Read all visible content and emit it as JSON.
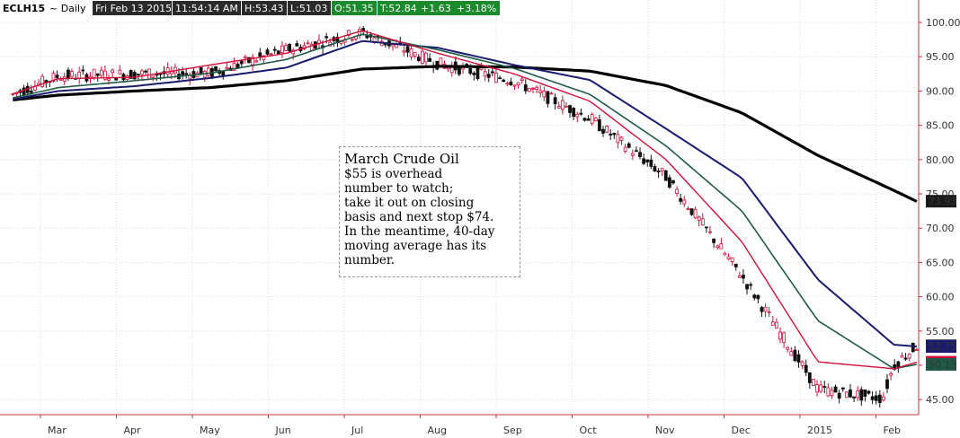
{
  "header": {
    "symbol": "ECLH15",
    "period": "~ Daily",
    "date": "Fri Feb 13 2015",
    "time": "11:54:14 AM",
    "high": "H:53.43",
    "low": "L:51.03",
    "open": "O:51.35",
    "last": "T:52.84",
    "change": "+1.63",
    "change_pct": "+3.18%"
  },
  "annotation": {
    "title": "March Crude Oil",
    "lines": [
      "$55 is overhead",
      "number to watch;",
      "take it out on closing",
      "basis and next stop $74.",
      "In the meantime, 40-day",
      "moving average has its",
      "number."
    ]
  },
  "colors": {
    "up_candle": "#d0103a",
    "down_candle": "#111111",
    "ma_fast": "#d0103a",
    "ma_mid": "#1e5a45",
    "ma_slow": "#1a1a6e",
    "ma_long": "#000000",
    "header_dark": "#2a2a2a",
    "header_green": "#1b8a2a"
  },
  "chart_data": {
    "type": "line",
    "ylim": [
      43,
      102
    ],
    "y_ticks": [
      "100.00",
      "95.00",
      "90.00",
      "85.00",
      "80.00",
      "75.00",
      "70.00",
      "65.00",
      "60.00",
      "55.00",
      "50.00",
      "45.00"
    ],
    "y_tick_values": [
      100,
      95,
      90,
      85,
      80,
      75,
      70,
      65,
      60,
      55,
      50,
      45
    ],
    "x_months": [
      "Mar",
      "Apr",
      "May",
      "Jun",
      "Jul",
      "Aug",
      "Sep",
      "Oct",
      "Nov",
      "Dec",
      "2015",
      "Feb"
    ],
    "x_month_index": [
      0,
      1,
      2,
      3,
      4,
      5,
      6,
      7,
      8,
      9,
      10,
      11
    ],
    "series": [
      {
        "key": "ma_long",
        "points": [
          [
            -0.6,
            88.7
          ],
          [
            0,
            89.4
          ],
          [
            1,
            90.0
          ],
          [
            2,
            90.5
          ],
          [
            3,
            91.5
          ],
          [
            4,
            93.2
          ],
          [
            5,
            93.6
          ],
          [
            6,
            93.5
          ],
          [
            7,
            92.9
          ],
          [
            8,
            90.8
          ],
          [
            9,
            86.8
          ],
          [
            10,
            80.6
          ],
          [
            11,
            75.5
          ],
          [
            11.3,
            73.9
          ]
        ]
      },
      {
        "key": "ma_slow",
        "points": [
          [
            -0.6,
            88.8
          ],
          [
            0,
            90.0
          ],
          [
            1,
            90.7
          ],
          [
            2,
            91.9
          ],
          [
            3,
            93.4
          ],
          [
            4,
            97.3
          ],
          [
            5,
            96.3
          ],
          [
            6,
            93.8
          ],
          [
            7,
            91.6
          ],
          [
            8,
            84.5
          ],
          [
            9,
            77.3
          ],
          [
            10,
            62.5
          ],
          [
            11,
            53.0
          ],
          [
            11.3,
            52.75
          ]
        ]
      },
      {
        "key": "ma_mid",
        "points": [
          [
            -0.6,
            89.0
          ],
          [
            0,
            90.5
          ],
          [
            1,
            91.5
          ],
          [
            2,
            92.6
          ],
          [
            3,
            94.6
          ],
          [
            4,
            98.3
          ],
          [
            5,
            96.0
          ],
          [
            6,
            93.3
          ],
          [
            7,
            89.5
          ],
          [
            8,
            82.0
          ],
          [
            9,
            72.5
          ],
          [
            10,
            56.5
          ],
          [
            11,
            49.5
          ],
          [
            11.3,
            50.13
          ]
        ]
      },
      {
        "key": "ma_fast",
        "points": [
          [
            -0.6,
            89.6
          ],
          [
            0,
            91.8
          ],
          [
            1,
            92.0
          ],
          [
            2,
            93.8
          ],
          [
            3,
            95.5
          ],
          [
            4,
            98.8
          ],
          [
            5,
            95.5
          ],
          [
            6,
            92.5
          ],
          [
            7,
            88.5
          ],
          [
            8,
            80.0
          ],
          [
            9,
            68.0
          ],
          [
            10,
            50.5
          ],
          [
            11,
            49.5
          ],
          [
            11.3,
            50.45
          ]
        ]
      }
    ],
    "candle_path": [
      [
        -0.6,
        89.5
      ],
      [
        0,
        92.2
      ],
      [
        1,
        92.5
      ],
      [
        2,
        92.6
      ],
      [
        3,
        96.0
      ],
      [
        4,
        98.5
      ],
      [
        5,
        94.0
      ],
      [
        6,
        91.5
      ],
      [
        7,
        86.0
      ],
      [
        8,
        77.5
      ],
      [
        9,
        63.0
      ],
      [
        10,
        46.5
      ],
      [
        10.85,
        45.2
      ],
      [
        11,
        50.0
      ],
      [
        11.3,
        52.84
      ]
    ],
    "last_labels": [
      {
        "key": "last_price",
        "value": "52.84"
      },
      {
        "key": "ma_slow",
        "value": "52.75"
      },
      {
        "key": "ma_fast",
        "value": "50.45"
      },
      {
        "key": "ma_mid",
        "value": "50.13"
      },
      {
        "key": "ma_long",
        "value": "73.93"
      }
    ]
  }
}
